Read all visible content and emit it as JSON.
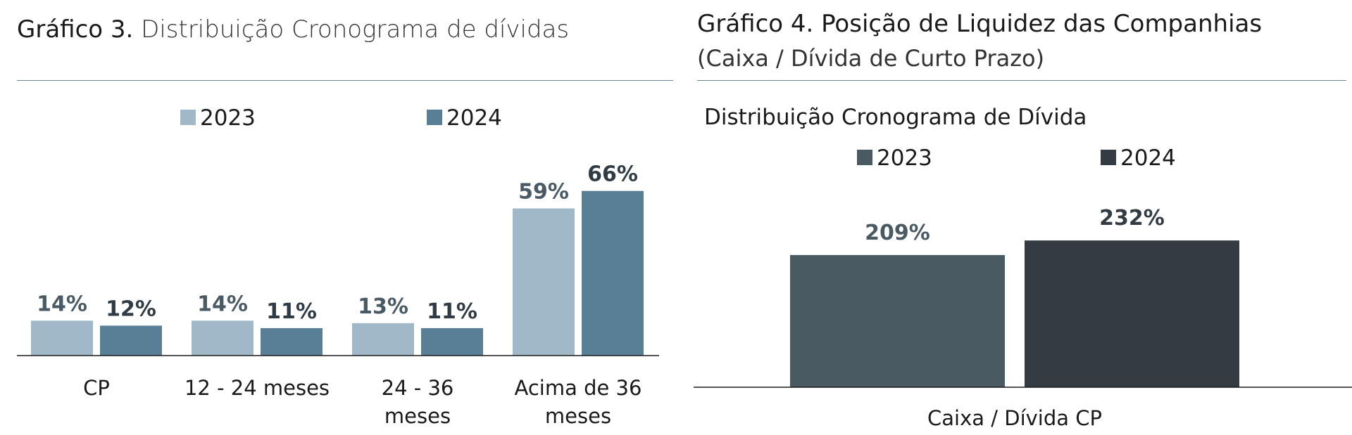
{
  "chart_data": [
    {
      "type": "bar",
      "title_lead": "Gráfico 3.",
      "title_rest": "Distribuição Cronograma de dívidas",
      "categories": [
        [
          "CP"
        ],
        [
          "12 - 24 meses"
        ],
        [
          "24 - 36",
          "meses"
        ],
        [
          "Acima de 36",
          "meses"
        ]
      ],
      "series": [
        {
          "name": "2023",
          "values": [
            14,
            14,
            13,
            59
          ],
          "labels": [
            "14%",
            "14%",
            "13%",
            "59%"
          ],
          "color": "#a0b8c8",
          "label_color": "#4a5a64"
        },
        {
          "name": "2024",
          "values": [
            12,
            11,
            11,
            66
          ],
          "labels": [
            "12%",
            "11%",
            "11%",
            "66%"
          ],
          "color": "#587f96",
          "label_color": "#2f3b45"
        }
      ],
      "ylim": [
        0,
        70
      ],
      "legend": "top-center",
      "grid": false
    },
    {
      "type": "bar",
      "title_lead": "Gráfico 4.",
      "title_rest": "Posição de Liquidez das Companhias",
      "subtitle": "(Caixa / Dívida de Curto Prazo)",
      "chart_title": "Distribuição Cronograma de Dívida",
      "categories": [
        [
          "Caixa / Dívida CP"
        ]
      ],
      "series": [
        {
          "name": "2023",
          "values": [
            209
          ],
          "labels": [
            "209%"
          ],
          "color": "#4a5a63",
          "label_color": "#4a5a63"
        },
        {
          "name": "2024",
          "values": [
            232
          ],
          "labels": [
            "232%"
          ],
          "color": "#323c42",
          "label_color": "#323c42"
        }
      ],
      "ylim": [
        0,
        280
      ],
      "legend": "top-center",
      "grid": false
    }
  ]
}
